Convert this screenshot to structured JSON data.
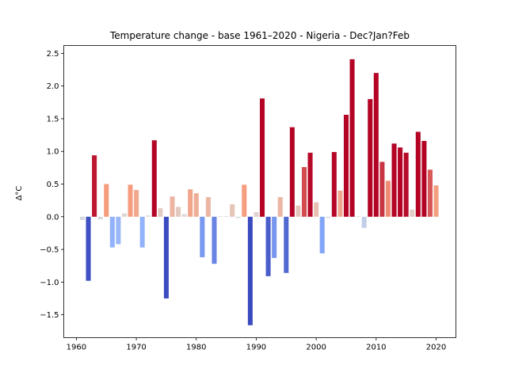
{
  "chart_data": {
    "type": "bar",
    "title": "Temperature change - base 1961–2020 - Nigeria - Dec?Jan?Feb",
    "xlabel": "",
    "ylabel": "Δ°C",
    "xlim": [
      1957.9,
      2023.3
    ],
    "ylim": [
      -1.85,
      2.62
    ],
    "xticks": [
      1960,
      1970,
      1980,
      1990,
      2000,
      2010,
      2020
    ],
    "yticks": [
      -1.5,
      -1.0,
      -0.5,
      0.0,
      0.5,
      1.0,
      1.5,
      2.0,
      2.5
    ],
    "grid": false,
    "colormap": "coolwarm",
    "x": [
      1961,
      1962,
      1963,
      1964,
      1965,
      1966,
      1967,
      1968,
      1969,
      1970,
      1971,
      1972,
      1973,
      1974,
      1975,
      1976,
      1977,
      1978,
      1979,
      1980,
      1981,
      1982,
      1983,
      1984,
      1985,
      1986,
      1987,
      1988,
      1989,
      1990,
      1991,
      1992,
      1993,
      1994,
      1995,
      1996,
      1997,
      1998,
      1999,
      2000,
      2001,
      2002,
      2003,
      2004,
      2005,
      2006,
      2007,
      2008,
      2009,
      2010,
      2011,
      2012,
      2013,
      2014,
      2015,
      2016,
      2017,
      2018,
      2019,
      2020
    ],
    "values": [
      -0.05,
      -0.98,
      0.94,
      -0.04,
      0.5,
      -0.47,
      -0.42,
      0.05,
      0.49,
      0.41,
      -0.47,
      0.02,
      1.17,
      0.13,
      -1.25,
      0.31,
      0.15,
      0.04,
      0.42,
      0.36,
      -0.62,
      0.3,
      -0.72,
      0.01,
      0.01,
      0.19,
      -0.02,
      0.49,
      -1.66,
      0.07,
      1.81,
      -0.91,
      -0.63,
      0.3,
      -0.86,
      1.37,
      0.17,
      0.76,
      0.98,
      0.22,
      -0.56,
      -0.02,
      0.99,
      0.4,
      1.56,
      2.41,
      0.01,
      -0.17,
      1.8,
      2.2,
      0.84,
      0.55,
      1.12,
      1.06,
      0.98,
      0.11,
      1.3,
      1.16,
      0.72,
      0.48
    ]
  }
}
